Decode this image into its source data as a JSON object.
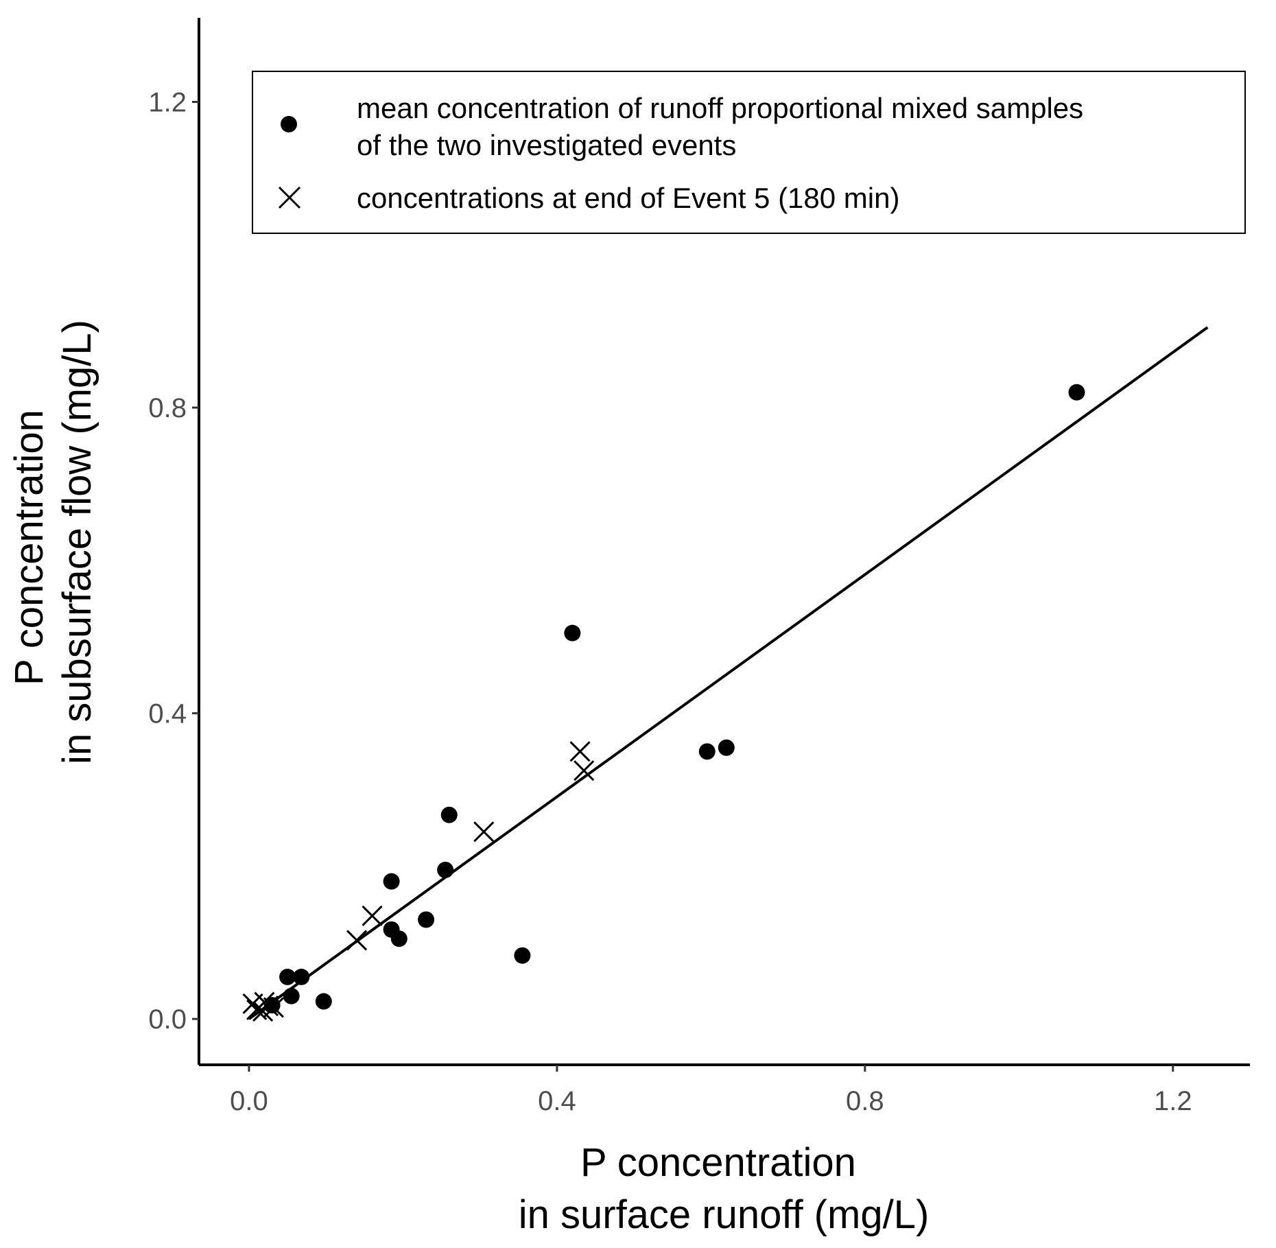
{
  "chart_data": {
    "type": "scatter",
    "xlabel": [
      "P concentration",
      "in surface runoff (mg/L)"
    ],
    "ylabel": [
      "P concentration",
      "in subsurface flow (mg/L)"
    ],
    "xlim": [
      -0.065,
      1.3
    ],
    "ylim": [
      -0.06,
      1.31
    ],
    "xticks": [
      0.0,
      0.4,
      0.8,
      1.2
    ],
    "yticks": [
      0.0,
      0.4,
      0.8,
      1.2
    ],
    "xtick_labels": [
      "0.0",
      "0.4",
      "0.8",
      "1.2"
    ],
    "ytick_labels": [
      "0.0",
      "0.4",
      "0.8",
      "1.2"
    ],
    "grid": false,
    "legend_position": "top-right",
    "series": [
      {
        "name": "mean concentration of runoff proportional mixed samples of the two investigated events",
        "legend_lines": [
          "mean concentration of runoff proportional mixed samples",
          "of the two investigated events"
        ],
        "marker": "circle",
        "points": [
          [
            1.075,
            0.82
          ],
          [
            0.42,
            0.505
          ],
          [
            0.595,
            0.35
          ],
          [
            0.62,
            0.355
          ],
          [
            0.26,
            0.267
          ],
          [
            0.255,
            0.195
          ],
          [
            0.185,
            0.18
          ],
          [
            0.185,
            0.117
          ],
          [
            0.195,
            0.105
          ],
          [
            0.23,
            0.13
          ],
          [
            0.355,
            0.083
          ],
          [
            0.05,
            0.055
          ],
          [
            0.068,
            0.055
          ],
          [
            0.055,
            0.03
          ],
          [
            0.097,
            0.023
          ],
          [
            0.03,
            0.018
          ]
        ]
      },
      {
        "name": "concentrations at end of Event 5 (180 min)",
        "legend_lines": [
          "concentrations at end of Event 5 (180 min)"
        ],
        "marker": "x",
        "points": [
          [
            0.43,
            0.35
          ],
          [
            0.435,
            0.325
          ],
          [
            0.305,
            0.245
          ],
          [
            0.16,
            0.135
          ],
          [
            0.14,
            0.103
          ],
          [
            0.005,
            0.02
          ],
          [
            0.01,
            0.012
          ],
          [
            0.018,
            0.01
          ],
          [
            0.025,
            0.017
          ],
          [
            0.032,
            0.015
          ],
          [
            0.02,
            0.022
          ]
        ]
      }
    ],
    "fit_line": {
      "x": [
        0.0,
        1.245
      ],
      "y": [
        0.0,
        0.905
      ]
    }
  }
}
